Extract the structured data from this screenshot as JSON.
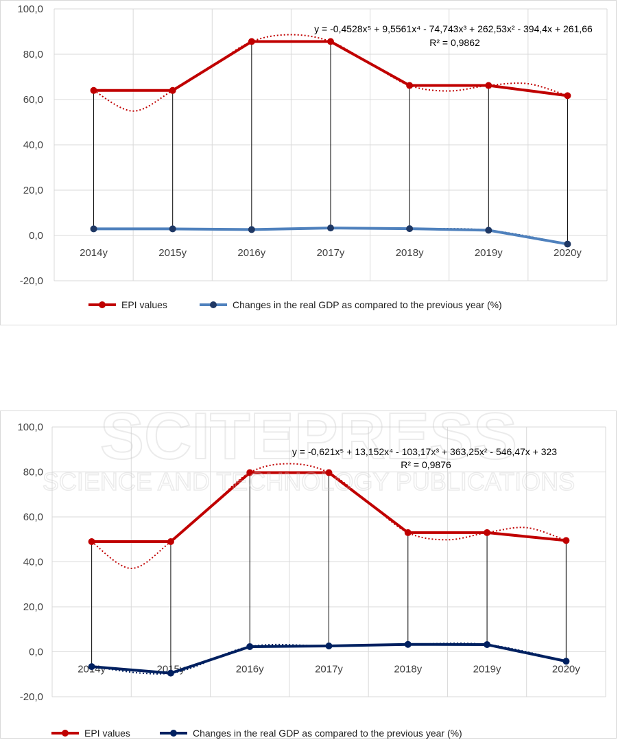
{
  "colors": {
    "epi": "#c00000",
    "gdp_chart1": "#4f81bd",
    "gdp_marker_chart1": "#1f3864",
    "gdp_chart2": "#002060",
    "grid": "#d9d9d9",
    "droplines": "#000000",
    "watermark": "#c8c8c8"
  },
  "watermark": {
    "main": "SCITEPRESS",
    "sub": "SCIENCE AND TECHNOLOGY PUBLICATIONS"
  },
  "chart_data": [
    {
      "type": "line",
      "categories": [
        "2014y",
        "2015y",
        "2016y",
        "2017y",
        "2018y",
        "2019y",
        "2020y"
      ],
      "series": [
        {
          "name": "EPI values",
          "values": [
            64.0,
            64.0,
            85.6,
            85.6,
            66.2,
            66.2,
            61.7
          ]
        },
        {
          "name": "Changes in the real GDP as compared to the previous year (%)",
          "values": [
            2.9,
            2.9,
            2.6,
            3.3,
            3.0,
            2.3,
            -3.8
          ]
        }
      ],
      "trendline": {
        "type": "polynomial",
        "order": 5,
        "equation": "y = -0,4528x⁵ + 9,5561x⁴ - 74,743x³ + 262,53x² - 394,4x + 261,66",
        "r2": "R² = 0,9862"
      },
      "ylim": [
        -20,
        100
      ],
      "yticks": [
        "100,0",
        "80,0",
        "60,0",
        "40,0",
        "20,0",
        "0,0",
        "-20,0"
      ],
      "ytick_values": [
        100,
        80,
        60,
        40,
        20,
        0,
        -20
      ],
      "grid": true,
      "legend": "bottom",
      "drop_lines": true
    },
    {
      "type": "line",
      "categories": [
        "2014y",
        "2015y",
        "2016y",
        "2017y",
        "2018y",
        "2019y",
        "2020y"
      ],
      "series": [
        {
          "name": "EPI values",
          "values": [
            49.0,
            49.0,
            79.7,
            79.7,
            53.0,
            53.0,
            49.5
          ]
        },
        {
          "name": "Changes in the real GDP as compared to the previous year (%)",
          "values": [
            -6.6,
            -9.5,
            2.3,
            2.6,
            3.3,
            3.2,
            -4.2
          ]
        }
      ],
      "trendline": {
        "type": "polynomial",
        "order": 5,
        "equation": "y = -0,621x⁵ + 13,152x⁴ - 103,17x³ + 363,25x² - 546,47x + 323",
        "r2": "R² = 0,9876"
      },
      "ylim": [
        -20,
        100
      ],
      "yticks": [
        "100,0",
        "80,0",
        "60,0",
        "40,0",
        "20,0",
        "0,0",
        "-20,0"
      ],
      "ytick_values": [
        100,
        80,
        60,
        40,
        20,
        0,
        -20
      ],
      "grid": true,
      "legend": "bottom",
      "drop_lines": true
    }
  ]
}
